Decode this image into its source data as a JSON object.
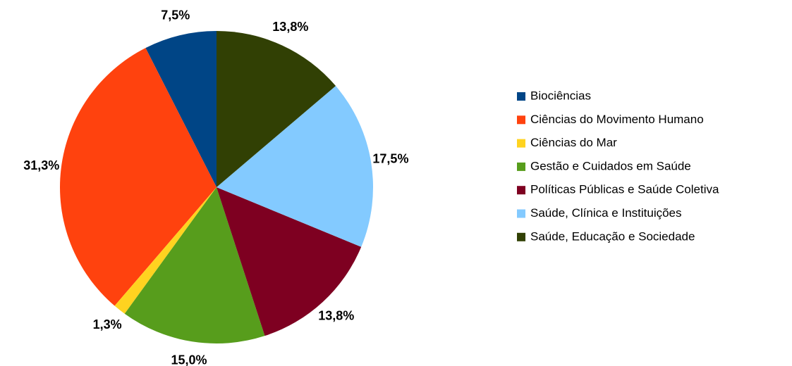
{
  "chart_data": {
    "type": "pie",
    "categories": [
      "Biociências",
      "Ciências do Movimento Humano",
      "Ciências do Mar",
      "Gestão e Cuidados em Saúde",
      "Políticas Públicas e Saúde Coletiva",
      "Saúde, Clínica e Instituições",
      "Saúde, Educação e Sociedade"
    ],
    "values": [
      7.5,
      31.3,
      1.3,
      15.0,
      13.8,
      17.5,
      13.8
    ],
    "value_labels": [
      "7,5%",
      "31,3%",
      "1,3%",
      "15,0%",
      "13,8%",
      "17,5%",
      "13,8%"
    ],
    "colors": [
      "#004586",
      "#ff420e",
      "#ffd320",
      "#579d1c",
      "#7e0021",
      "#83caff",
      "#314004"
    ],
    "legend": "right"
  }
}
